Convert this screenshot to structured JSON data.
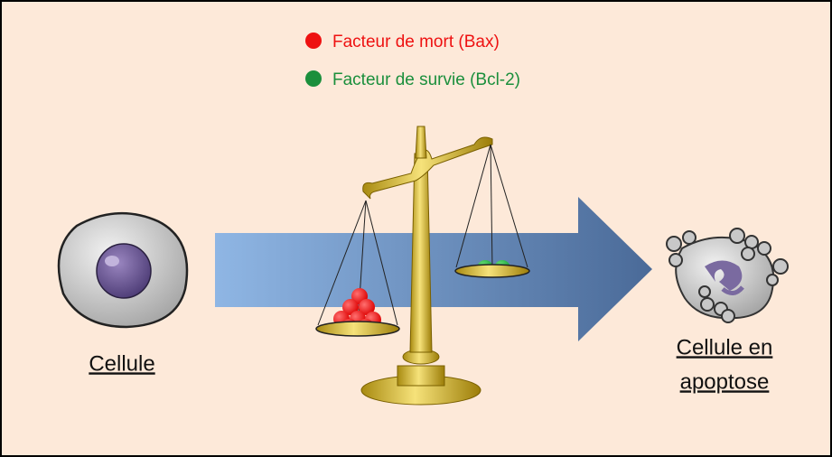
{
  "legend": {
    "items": [
      {
        "label": "Facteur de mort (Bax)",
        "color": "#ee1111"
      },
      {
        "label": "Facteur de survie (Bcl-2)",
        "color": "#1b8f3c"
      }
    ]
  },
  "normal_cell": {
    "label": "Cellule"
  },
  "apoptotic_cell": {
    "label_lines": [
      "Cellule en",
      "apoptose"
    ]
  }
}
